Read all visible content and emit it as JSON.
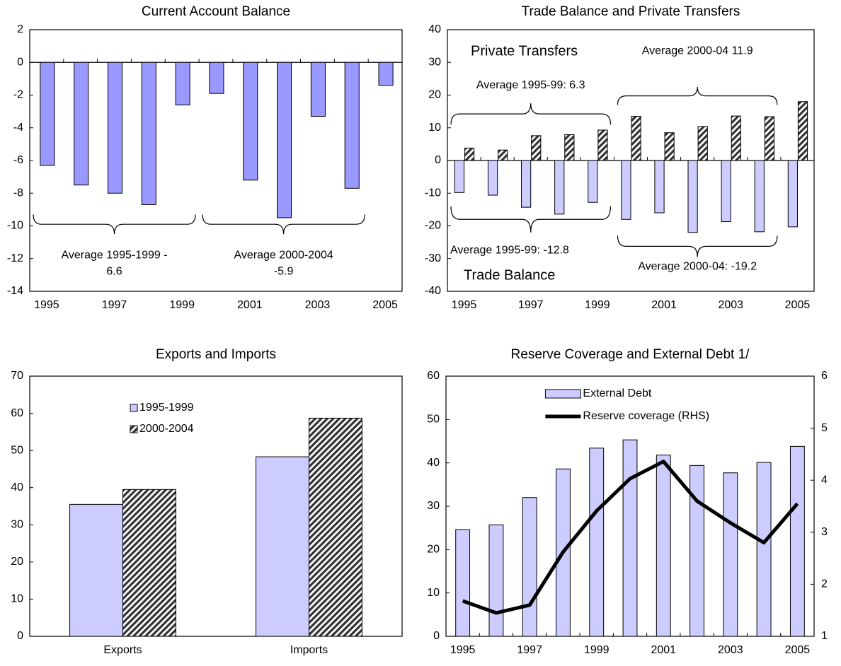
{
  "chart_data": [
    {
      "type": "bar",
      "title": "Current Account Balance",
      "categories": [
        "1995",
        null,
        "1997",
        null,
        "1999",
        null,
        "2001",
        null,
        "2003",
        null,
        "2005"
      ],
      "values": [
        -6.3,
        -7.5,
        -8.0,
        -8.7,
        -2.6,
        -1.9,
        -7.2,
        -9.5,
        -3.3,
        -7.7,
        -1.4
      ],
      "color": "#9999ff",
      "ylim": [
        -14,
        2
      ],
      "yticks": [
        -14,
        -12,
        -10,
        -8,
        -6,
        -4,
        -2,
        0,
        2
      ],
      "annotations": [
        [
          "Average 1995-1999  -",
          "6.6"
        ],
        [
          "Average 2000-2004",
          "-5.9"
        ]
      ]
    },
    {
      "type": "bar",
      "title": "Trade Balance and Private Transfers",
      "categories": [
        "1995",
        null,
        "1997",
        null,
        "1999",
        null,
        "2001",
        null,
        "2003",
        null,
        "2005"
      ],
      "series": [
        {
          "name": "Trade Balance",
          "color": "#ccccff",
          "hatch": false,
          "values": [
            -9.8,
            -10.6,
            -14.3,
            -16.4,
            -12.8,
            -18.0,
            -16.0,
            -22.0,
            -18.7,
            -21.8,
            -20.3
          ]
        },
        {
          "name": "Private Transfers",
          "color": "#333333",
          "hatch": true,
          "values": [
            3.8,
            3.2,
            7.6,
            7.9,
            9.3,
            13.5,
            8.5,
            10.4,
            13.6,
            13.4,
            18.0
          ]
        }
      ],
      "ylim": [
        -40,
        40
      ],
      "yticks": [
        -40,
        -30,
        -20,
        -10,
        0,
        10,
        20,
        30,
        40
      ],
      "annotations": [
        [
          "Average 1995-99: 6.3"
        ],
        [
          "Average 2000-04 11.9"
        ],
        [
          "Average 1995-99: -12.8"
        ],
        [
          "Average 2000-04: -19.2"
        ]
      ]
    },
    {
      "type": "bar",
      "title": "Exports and Imports",
      "categories": [
        "Exports",
        "Imports"
      ],
      "series": [
        {
          "name": "1995-1999",
          "color": "#ccccff",
          "hatch": false,
          "values": [
            35.5,
            48.3
          ]
        },
        {
          "name": "2000-2004",
          "color": "#333333",
          "hatch": true,
          "values": [
            39.5,
            58.7
          ]
        }
      ],
      "ylim": [
        0,
        70
      ],
      "yticks": [
        0,
        10,
        20,
        30,
        40,
        50,
        60,
        70
      ],
      "legend": "upper left"
    },
    {
      "type": "bar",
      "title": "Reserve Coverage and External Debt 1/",
      "categories": [
        "1995",
        null,
        "1997",
        null,
        "1999",
        null,
        "2001",
        null,
        "2003",
        null,
        "2005"
      ],
      "series": [
        {
          "name": "External Debt",
          "type": "bar",
          "color": "#ccccff",
          "hatch": false,
          "values": [
            24.6,
            25.7,
            32.0,
            38.6,
            43.4,
            45.3,
            41.8,
            39.4,
            37.7,
            40.1,
            43.8
          ]
        },
        {
          "name": "Reserve coverage (RHS)",
          "type": "line",
          "axis": "y2",
          "color": "#000000",
          "values": [
            1.68,
            1.45,
            1.6,
            2.62,
            3.41,
            4.03,
            4.36,
            3.6,
            3.18,
            2.8,
            3.55
          ]
        }
      ],
      "ylim": [
        0,
        60
      ],
      "yticks": [
        0,
        10,
        20,
        30,
        40,
        50,
        60
      ],
      "y2lim": [
        1,
        6
      ],
      "y2ticks": [
        1,
        2,
        3,
        4,
        5,
        6
      ],
      "legend": "upper left"
    }
  ]
}
